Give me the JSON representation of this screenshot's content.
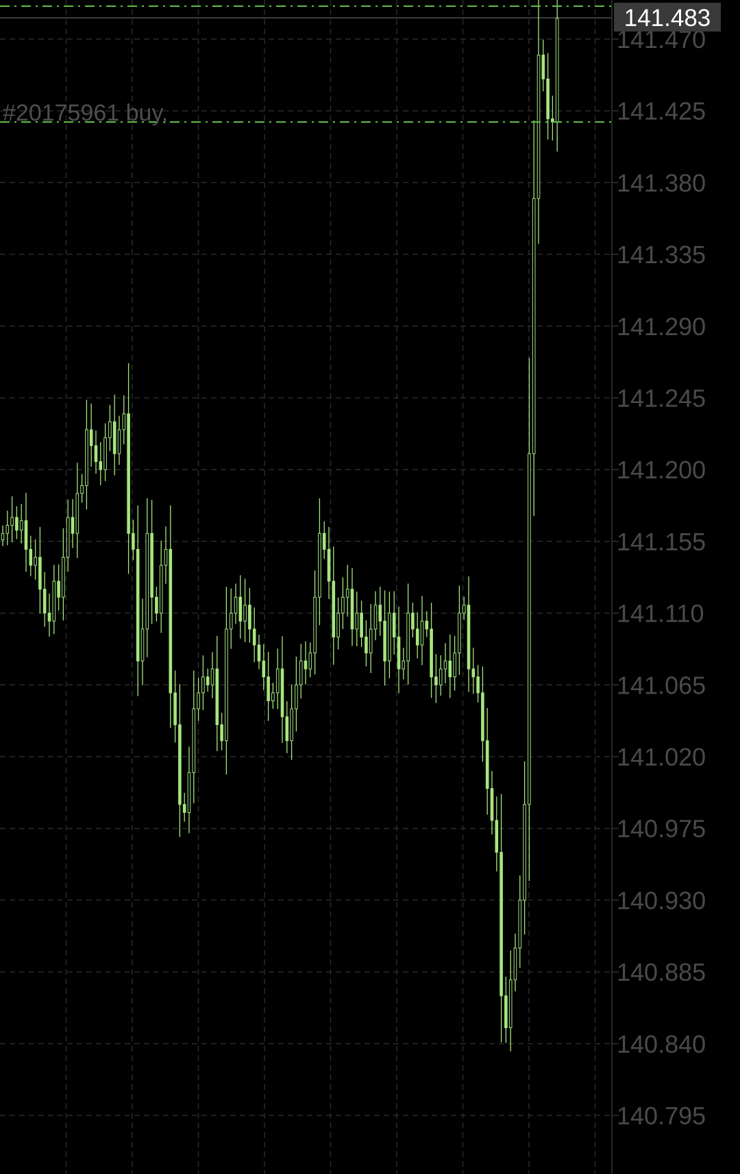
{
  "chart_data": {
    "type": "candlestick",
    "title": "",
    "xlabel": "",
    "ylabel": "",
    "ylim": [
      140.77,
      141.49
    ],
    "y_ticks": [
      "141.470",
      "141.425",
      "141.380",
      "141.335",
      "141.290",
      "141.245",
      "141.200",
      "141.155",
      "141.110",
      "141.065",
      "141.020",
      "140.975",
      "140.930",
      "140.885",
      "140.840",
      "140.795"
    ],
    "grid": true,
    "current_price": "141.483",
    "order_line": {
      "label": "#20175961 buy,",
      "price": 141.418
    },
    "top_order_line_price": 141.481,
    "colors": {
      "candle": "#a6e67f",
      "order_line": "#5fbf4a",
      "grid": "#2b2b2b",
      "axis_text": "#4a4a4a",
      "price_box": "#3a3a3a"
    },
    "close": [
      141.16,
      141.165,
      141.17,
      141.162,
      141.168,
      141.15,
      141.14,
      141.145,
      141.125,
      141.11,
      141.105,
      141.13,
      141.12,
      141.145,
      141.17,
      141.16,
      141.185,
      141.19,
      141.225,
      141.215,
      141.205,
      141.2,
      141.22,
      141.23,
      141.21,
      141.225,
      141.235,
      141.16,
      141.15,
      141.08,
      141.1,
      141.16,
      141.12,
      141.11,
      141.14,
      141.15,
      141.06,
      141.04,
      140.99,
      140.985,
      141.01,
      141.05,
      141.06,
      141.07,
      141.065,
      141.075,
      141.04,
      141.03,
      141.1,
      141.11,
      141.12,
      141.105,
      141.115,
      141.1,
      141.09,
      141.08,
      141.07,
      141.055,
      141.06,
      141.075,
      141.045,
      141.03,
      141.05,
      141.065,
      141.08,
      141.075,
      141.085,
      141.12,
      141.16,
      141.15,
      141.13,
      141.095,
      141.11,
      141.12,
      141.125,
      141.1,
      141.11,
      141.095,
      141.085,
      141.1,
      141.115,
      141.105,
      141.08,
      141.11,
      141.095,
      141.075,
      141.08,
      141.11,
      141.1,
      141.09,
      141.105,
      141.1,
      141.07,
      141.065,
      141.075,
      141.08,
      141.07,
      141.085,
      141.11,
      141.115,
      141.075,
      141.07,
      141.06,
      141.03,
      141.0,
      140.98,
      140.96,
      140.87,
      140.85,
      140.88,
      140.9,
      140.93,
      140.99,
      141.21,
      141.37,
      141.46,
      141.445,
      141.42,
      141.418,
      141.483
    ]
  }
}
